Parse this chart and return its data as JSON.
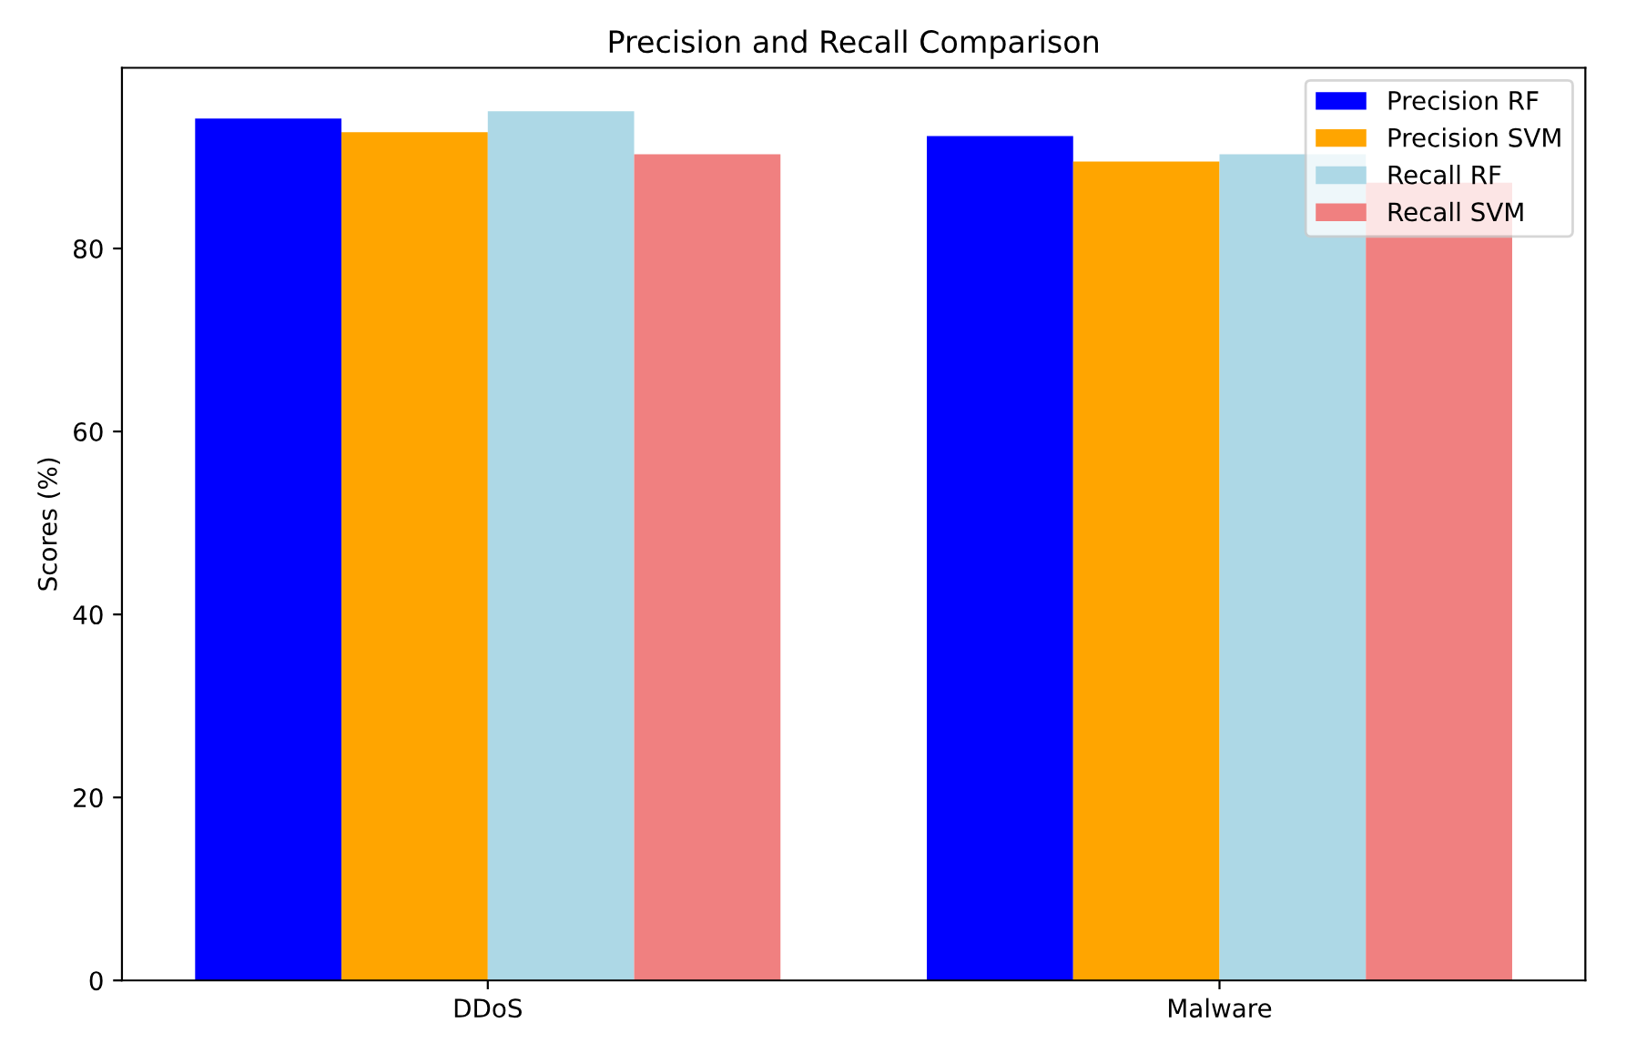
{
  "chart_data": {
    "type": "bar",
    "title": "Precision and Recall Comparison",
    "ylabel": "Scores (%)",
    "categories": [
      "DDoS",
      "Malware"
    ],
    "series": [
      {
        "name": "Precision RF",
        "color": "#0000ff",
        "values": [
          94.2,
          92.3
        ]
      },
      {
        "name": "Precision SVM",
        "color": "#ffa500",
        "values": [
          92.7,
          89.5
        ]
      },
      {
        "name": "Recall RF",
        "color": "#add8e6",
        "values": [
          95.0,
          90.3
        ]
      },
      {
        "name": "Recall SVM",
        "color": "#f08080",
        "values": [
          90.3,
          87.2
        ]
      }
    ],
    "ylim": [
      0,
      99.75
    ],
    "yticks": [
      0,
      20,
      40,
      60,
      80
    ],
    "grid": false,
    "legend": "top right"
  }
}
